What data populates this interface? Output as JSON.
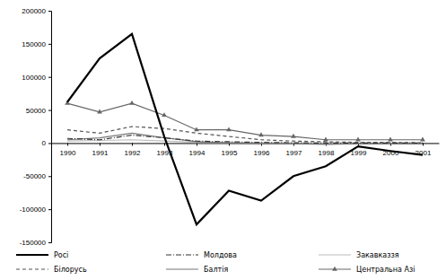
{
  "chart_data": {
    "type": "line",
    "categories": [
      "1990",
      "1991",
      "1992",
      "1993",
      "1994",
      "1995",
      "1996",
      "1997",
      "1998",
      "1999",
      "2000",
      "2001"
    ],
    "series": [
      {
        "name": "Росі",
        "color": "#000000",
        "line_style": "solid",
        "values": [
          62000,
          128000,
          165000,
          10000,
          -123000,
          -72000,
          -87000,
          -50000,
          -35000,
          -5000,
          -12000,
          -18000
        ]
      },
      {
        "name": "Білорусь",
        "color": "#555555",
        "line_style": "dashed",
        "values": [
          20000,
          15000,
          25000,
          22000,
          15000,
          10000,
          5000,
          3000,
          2000,
          1000,
          1000,
          500
        ]
      },
      {
        "name": "Молдова",
        "color": "#333333",
        "line_style": "dashdot",
        "values": [
          7000,
          5000,
          12000,
          8000,
          3000,
          2000,
          1000,
          500,
          0,
          0,
          0,
          0
        ]
      },
      {
        "name": "Балтія",
        "color": "#777777",
        "line_style": "solid",
        "values": [
          5000,
          8000,
          15000,
          8000,
          2000,
          0,
          -1000,
          -1000,
          -2000,
          -1000,
          -1000,
          -1000
        ]
      },
      {
        "name": "Закавказзя",
        "color": "#bbbbbb",
        "line_style": "solid",
        "values": [
          3000,
          4000,
          5000,
          3000,
          1000,
          1000,
          500,
          0,
          0,
          0,
          0,
          0
        ]
      },
      {
        "name": "Центральна Азі",
        "color": "#666666",
        "line_style": "solid",
        "marker": "triangle",
        "values": [
          60000,
          47000,
          60000,
          42000,
          20000,
          20000,
          12000,
          10000,
          5000,
          5000,
          5000,
          5000
        ]
      }
    ],
    "ylim": [
      -150000,
      200000
    ],
    "yticks": [
      -150000,
      -100000,
      -50000,
      0,
      50000,
      100000,
      150000,
      200000
    ],
    "grid": false,
    "legend": "bottom"
  }
}
